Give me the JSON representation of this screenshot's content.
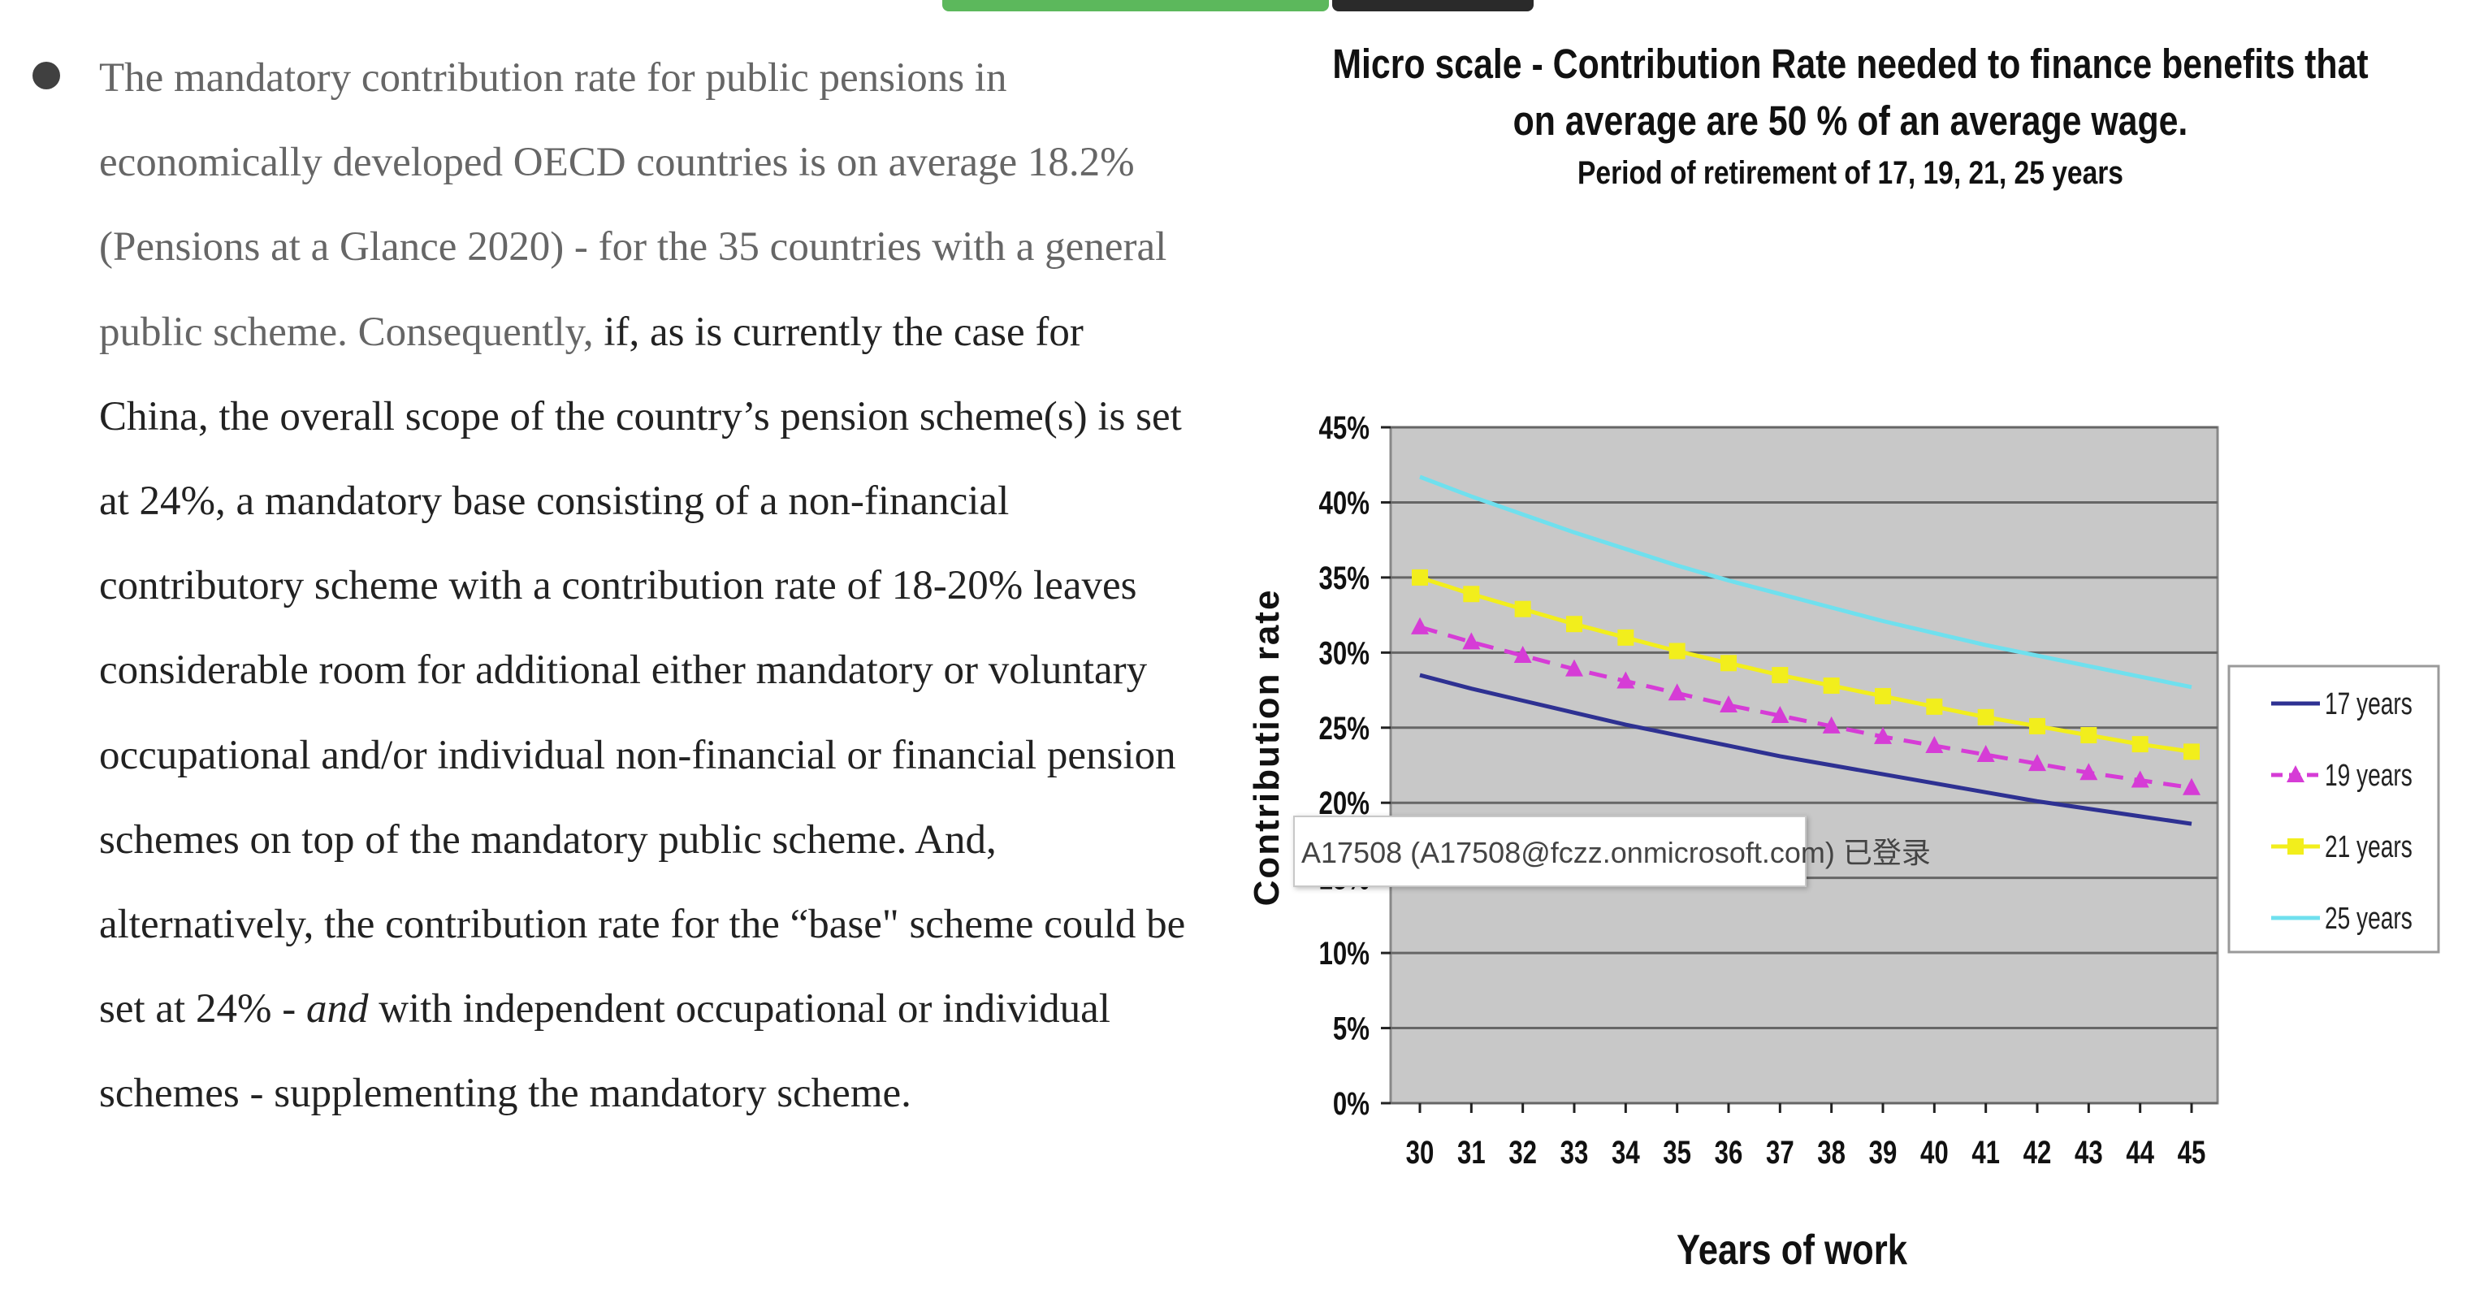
{
  "paragraph": {
    "s1": "The mandatory contribution rate for public pensions in economically developed OECD countries is on average 18.2% (Pensions at a Glance 2020) - for the 35 countries with a general public scheme. Consequently,",
    "s2": " if, as is currently the case for China, the overall scope of the country’s pension scheme(s) is set at 24%, a mandatory base consisting of a non-financial contributory scheme with a contribution rate of 18-20% leaves considerable room for additional either mandatory or voluntary occupational and/or individual non-financial or financial pension schemes on top of the mandatory public scheme. And, alternatively, the contribution rate for the “base\" scheme could be set at 24% - ",
    "emph": "and",
    "s3": " with independent occupational or individual schemes - supplementing the mandatory scheme."
  },
  "tooltip": {
    "text": "A17508 (A17508@fczz.onmicrosoft.com) 已登录"
  },
  "colors": {
    "plot_bg": "#c8c8c8",
    "grid": "#666666",
    "s17": "#2e3192",
    "s19": "#d63cd6",
    "s21": "#f2ee1c",
    "s25": "#6fe0ee"
  },
  "chart_data": {
    "type": "line",
    "title_line1": "Micro scale -  Contribution Rate needed to finance benefits that",
    "title_line2": "on average are 50 % of an average wage.",
    "subtitle": "Period of retirement of 17, 19, 21, 25 years",
    "xlabel": "Years of work",
    "ylabel": "Contribution rate",
    "x": [
      30,
      31,
      32,
      33,
      34,
      35,
      36,
      37,
      38,
      39,
      40,
      41,
      42,
      43,
      44,
      45
    ],
    "ylim": [
      0,
      45
    ],
    "yticks": [
      "0%",
      "5%",
      "10%",
      "15%",
      "20%",
      "25%",
      "30%",
      "35%",
      "40%",
      "45%"
    ],
    "grid": true,
    "legend_position": "right",
    "series": [
      {
        "name": "17 years",
        "marker": "none",
        "values": [
          28.5,
          27.6,
          26.8,
          26.0,
          25.2,
          24.5,
          23.8,
          23.1,
          22.5,
          21.9,
          21.3,
          20.7,
          20.1,
          19.6,
          19.1,
          18.6
        ]
      },
      {
        "name": "19 years",
        "marker": "triangle",
        "values": [
          31.7,
          30.7,
          29.8,
          28.9,
          28.1,
          27.3,
          26.5,
          25.8,
          25.1,
          24.4,
          23.8,
          23.2,
          22.6,
          22.0,
          21.5,
          21.0
        ]
      },
      {
        "name": "21 years",
        "marker": "square",
        "values": [
          35.0,
          33.9,
          32.9,
          31.9,
          31.0,
          30.1,
          29.3,
          28.5,
          27.8,
          27.1,
          26.4,
          25.7,
          25.1,
          24.5,
          23.9,
          23.4
        ]
      },
      {
        "name": "25 years",
        "marker": "none",
        "values": [
          41.7,
          40.4,
          39.2,
          38.0,
          36.9,
          35.8,
          34.8,
          33.9,
          33.0,
          32.1,
          31.3,
          30.5,
          29.8,
          29.1,
          28.4,
          27.7
        ]
      }
    ]
  }
}
